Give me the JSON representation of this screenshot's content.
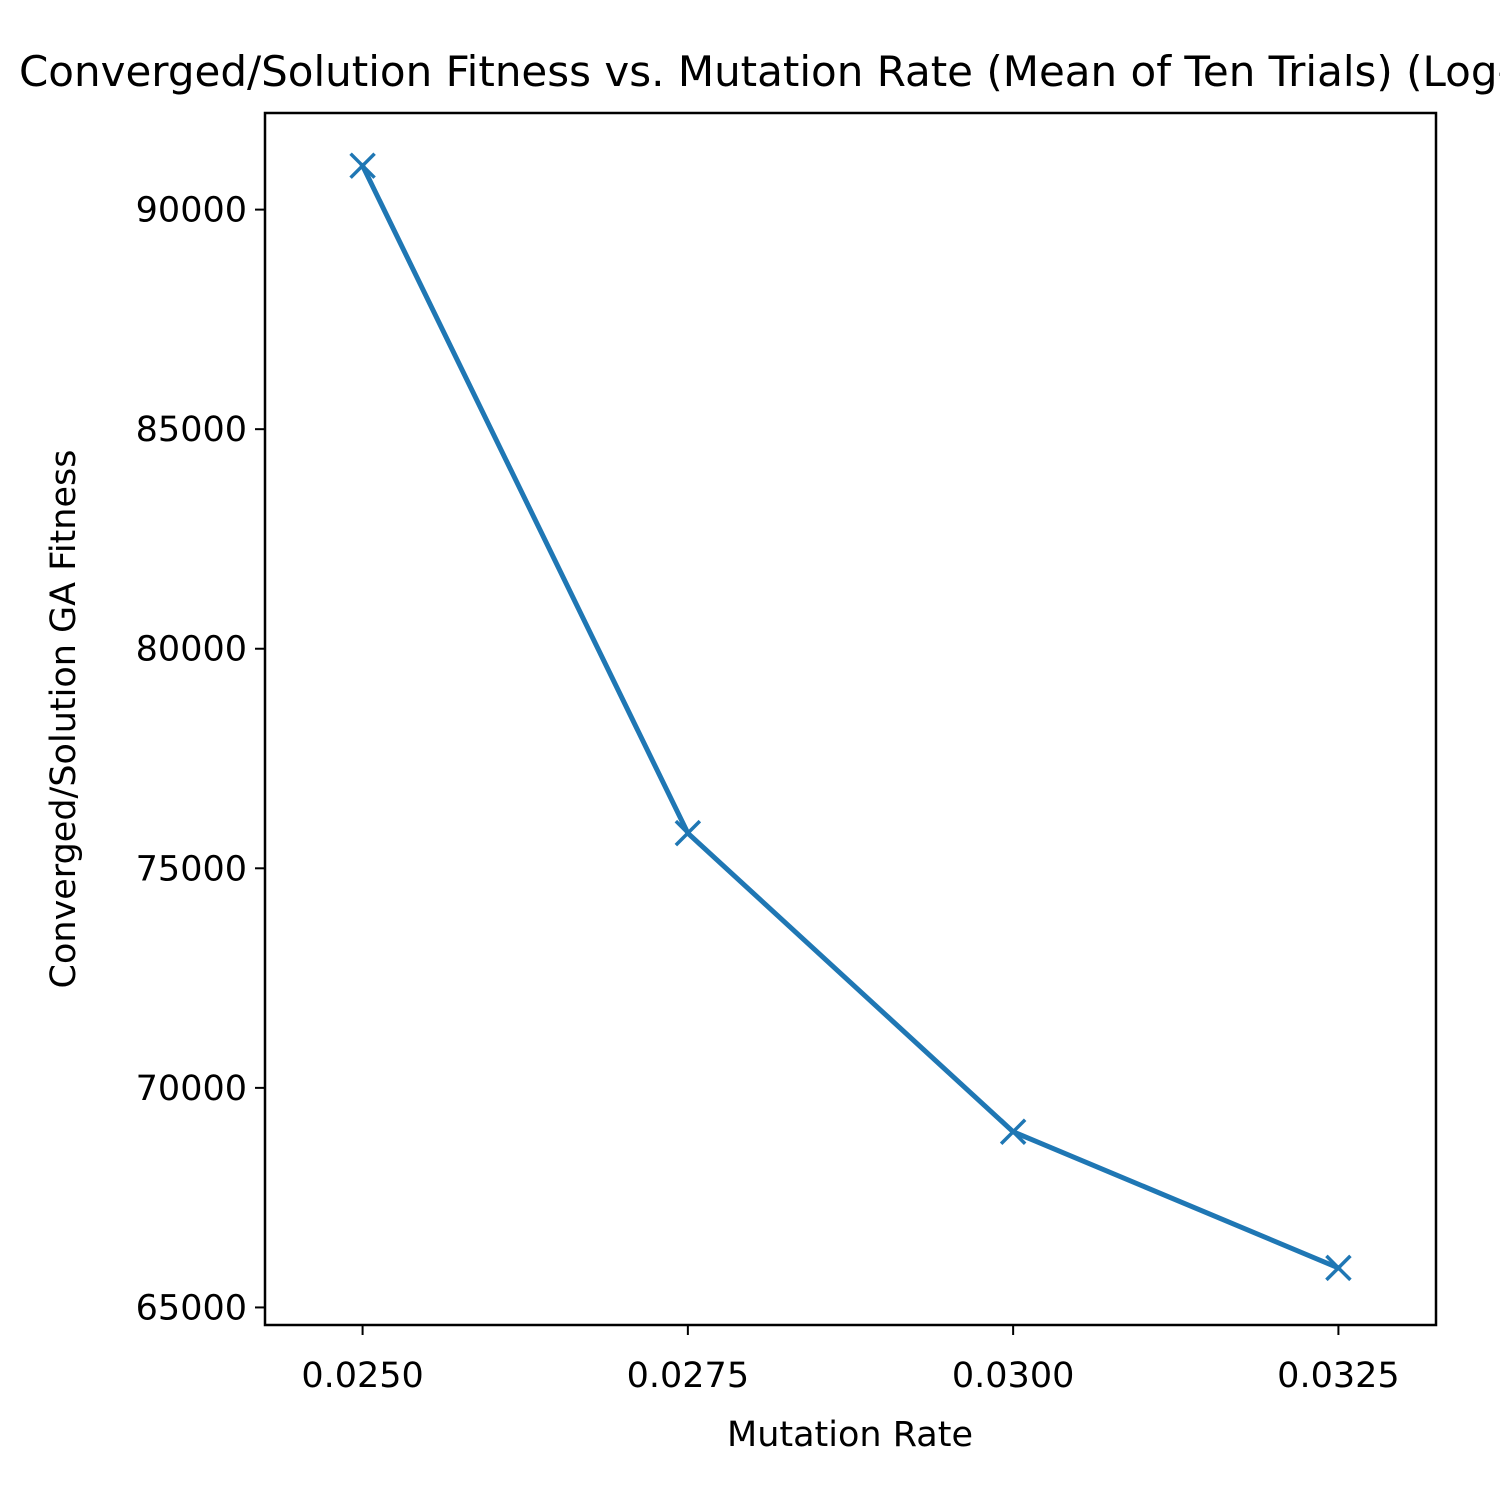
{
  "chart_data": {
    "type": "line",
    "title": "Converged/Solution Fitness vs. Mutation Rate (Mean of Ten Trials) (Log-Normal)",
    "xlabel": "Mutation Rate",
    "ylabel": "Converged/Solution GA Fitness",
    "x": [
      0.025,
      0.0275,
      0.03,
      0.0325
    ],
    "x_tick_labels": [
      "0.0250",
      "0.0275",
      "0.0300",
      "0.0325"
    ],
    "y_ticks": [
      65000,
      70000,
      75000,
      80000,
      85000,
      90000
    ],
    "y_tick_labels": [
      "65000",
      "70000",
      "75000",
      "80000",
      "85000",
      "90000"
    ],
    "xlim": [
      0.02425,
      0.03325
    ],
    "ylim": [
      64600,
      92200
    ],
    "grid": false,
    "marker": "x",
    "series": [
      {
        "values": [
          91000,
          75800,
          69000,
          65900
        ],
        "color": "#1f77b4"
      }
    ]
  }
}
